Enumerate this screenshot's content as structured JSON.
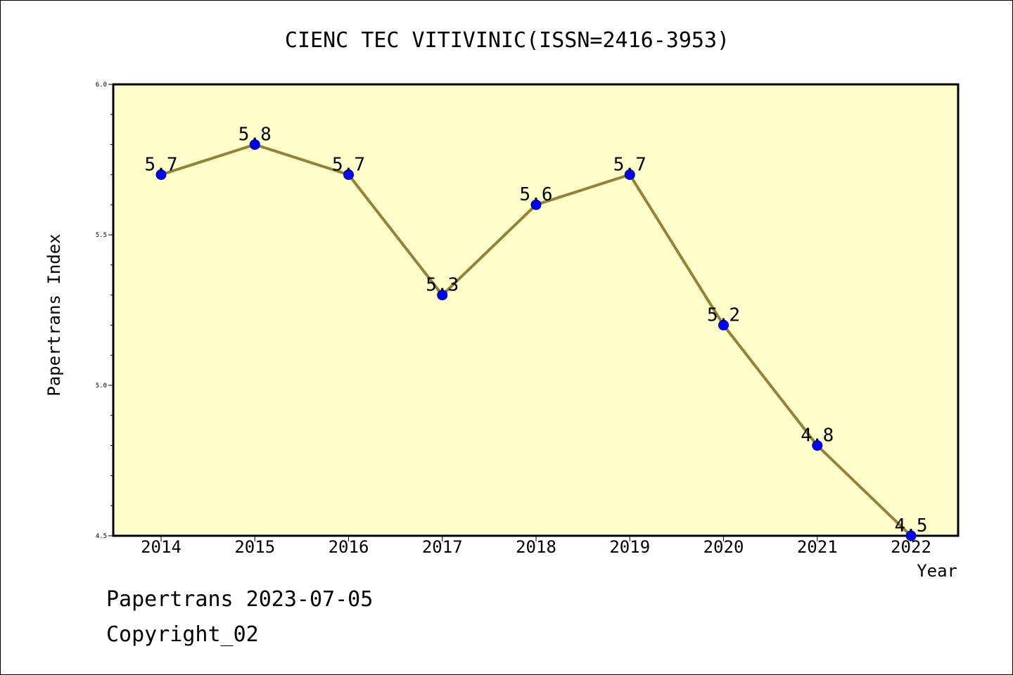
{
  "chart_data": {
    "type": "line",
    "title": "CIENC TEC VITIVINIC(ISSN=2416-3953)",
    "xlabel": "Year",
    "ylabel": "Papertrans Index",
    "categories": [
      "2014",
      "2015",
      "2016",
      "2017",
      "2018",
      "2019",
      "2020",
      "2021",
      "2022"
    ],
    "series": [
      {
        "values": [
          5.7,
          5.8,
          5.7,
          5.3,
          5.6,
          5.7,
          5.2,
          4.8,
          4.5
        ],
        "labels": [
          "5.7",
          "5.8",
          "5.7",
          "5.3",
          "5.6",
          "5.7",
          "5.2",
          "4.8",
          "4.5"
        ]
      }
    ],
    "ylim": [
      4.5,
      6.0
    ],
    "yticks": [
      4.5,
      5.0,
      5.5,
      6.0
    ],
    "ytick_labels": [
      "4.5",
      "5.0",
      "5.5",
      "6.0"
    ],
    "y_minor_step": 0.1,
    "grid": false,
    "legend": "none",
    "colors": {
      "plot_background": "#ffffcc",
      "line": "#948236",
      "marker": "#0000ff",
      "marker_edge": "#00008b",
      "axes": "#000000"
    }
  },
  "footer": {
    "line1": "Papertrans 2023-07-05",
    "line2": "Copyright_02"
  }
}
